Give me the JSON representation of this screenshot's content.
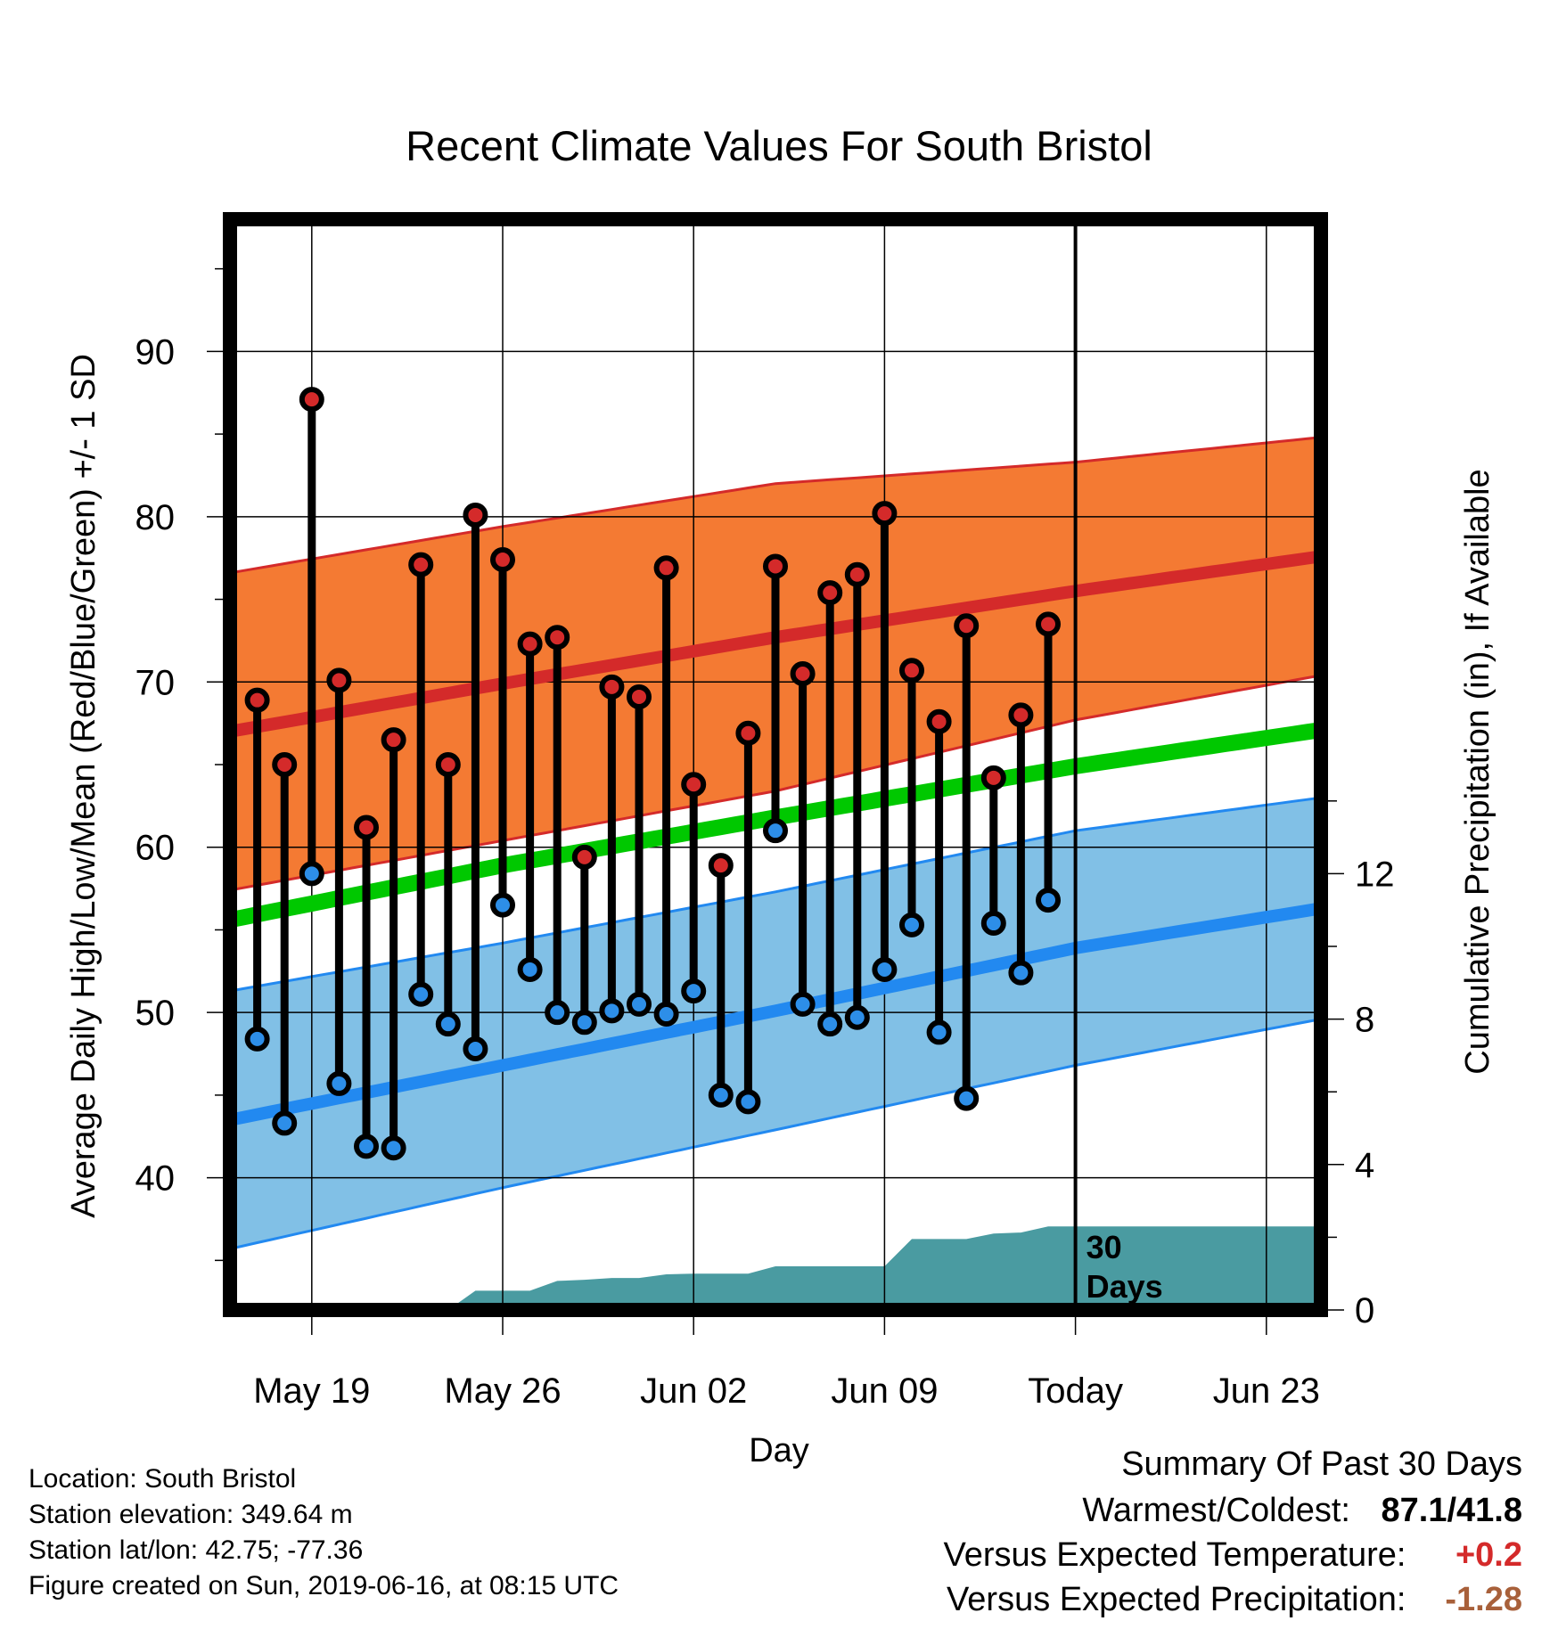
{
  "chart_data": {
    "type": "line",
    "title": "Recent Climate Values For South Bristol",
    "xlabel": "Day",
    "ylabel": "Average Daily High/Low/Mean (Red/Blue/Green) +/- 1 SD",
    "y2label": "Cumulative Precipitation (in), If Available",
    "ylim": [
      32,
      98
    ],
    "y2lim": [
      0,
      30
    ],
    "y_ticks": [
      40,
      50,
      60,
      70,
      80,
      90
    ],
    "y_tick_labels": [
      "40",
      "50",
      "60",
      "70",
      "80",
      "90"
    ],
    "y2_ticks": [
      0,
      4,
      8,
      12
    ],
    "y2_tick_labels": [
      "0",
      "4",
      "8",
      "12"
    ],
    "x_ticks": [
      "2019-05-19",
      "2019-05-26",
      "2019-06-02",
      "2019-06-09",
      "2019-06-16",
      "2019-06-23"
    ],
    "x_tick_labels": [
      "May 19",
      "May 26",
      "Jun 02",
      "Jun 09",
      "Today",
      "Jun 23"
    ],
    "xlim": [
      "2019-05-16",
      "2019-06-25"
    ],
    "grid": true,
    "today": "2019-06-16",
    "today_annotation": [
      "30",
      "Days"
    ],
    "daily_high": [
      {
        "date": "2019-05-17",
        "value": 68.9
      },
      {
        "date": "2019-05-18",
        "value": 65.0
      },
      {
        "date": "2019-05-19",
        "value": 87.1
      },
      {
        "date": "2019-05-20",
        "value": 70.1
      },
      {
        "date": "2019-05-21",
        "value": 61.2
      },
      {
        "date": "2019-05-22",
        "value": 66.5
      },
      {
        "date": "2019-05-23",
        "value": 77.1
      },
      {
        "date": "2019-05-24",
        "value": 65.0
      },
      {
        "date": "2019-05-25",
        "value": 80.1
      },
      {
        "date": "2019-05-26",
        "value": 77.4
      },
      {
        "date": "2019-05-27",
        "value": 72.3
      },
      {
        "date": "2019-05-28",
        "value": 72.7
      },
      {
        "date": "2019-05-29",
        "value": 59.4
      },
      {
        "date": "2019-05-30",
        "value": 69.7
      },
      {
        "date": "2019-05-31",
        "value": 69.1
      },
      {
        "date": "2019-06-01",
        "value": 76.9
      },
      {
        "date": "2019-06-02",
        "value": 63.8
      },
      {
        "date": "2019-06-03",
        "value": 58.9
      },
      {
        "date": "2019-06-04",
        "value": 66.9
      },
      {
        "date": "2019-06-05",
        "value": 77.0
      },
      {
        "date": "2019-06-06",
        "value": 70.5
      },
      {
        "date": "2019-06-07",
        "value": 75.4
      },
      {
        "date": "2019-06-08",
        "value": 76.5
      },
      {
        "date": "2019-06-09",
        "value": 80.2
      },
      {
        "date": "2019-06-10",
        "value": 70.7
      },
      {
        "date": "2019-06-11",
        "value": 67.6
      },
      {
        "date": "2019-06-12",
        "value": 73.4
      },
      {
        "date": "2019-06-13",
        "value": 64.2
      },
      {
        "date": "2019-06-14",
        "value": 68.0
      },
      {
        "date": "2019-06-15",
        "value": 73.5
      }
    ],
    "daily_low": [
      {
        "date": "2019-05-17",
        "value": 48.4
      },
      {
        "date": "2019-05-18",
        "value": 43.3
      },
      {
        "date": "2019-05-19",
        "value": 58.4
      },
      {
        "date": "2019-05-20",
        "value": 45.7
      },
      {
        "date": "2019-05-21",
        "value": 41.9
      },
      {
        "date": "2019-05-22",
        "value": 41.8
      },
      {
        "date": "2019-05-23",
        "value": 51.1
      },
      {
        "date": "2019-05-24",
        "value": 49.3
      },
      {
        "date": "2019-05-25",
        "value": 47.8
      },
      {
        "date": "2019-05-26",
        "value": 56.5
      },
      {
        "date": "2019-05-27",
        "value": 52.6
      },
      {
        "date": "2019-05-28",
        "value": 50.0
      },
      {
        "date": "2019-05-29",
        "value": 49.4
      },
      {
        "date": "2019-05-30",
        "value": 50.1
      },
      {
        "date": "2019-05-31",
        "value": 50.5
      },
      {
        "date": "2019-06-01",
        "value": 49.9
      },
      {
        "date": "2019-06-02",
        "value": 51.3
      },
      {
        "date": "2019-06-03",
        "value": 45.0
      },
      {
        "date": "2019-06-04",
        "value": 44.6
      },
      {
        "date": "2019-06-05",
        "value": 61.0
      },
      {
        "date": "2019-06-06",
        "value": 50.5
      },
      {
        "date": "2019-06-07",
        "value": 49.3
      },
      {
        "date": "2019-06-08",
        "value": 49.7
      },
      {
        "date": "2019-06-09",
        "value": 52.6
      },
      {
        "date": "2019-06-10",
        "value": 55.3
      },
      {
        "date": "2019-06-11",
        "value": 48.8
      },
      {
        "date": "2019-06-12",
        "value": 44.8
      },
      {
        "date": "2019-06-13",
        "value": 55.4
      },
      {
        "date": "2019-06-14",
        "value": 52.4
      },
      {
        "date": "2019-06-15",
        "value": 56.8
      }
    ],
    "normals": [
      {
        "date": "2019-05-16",
        "high": 67.0,
        "high_sd": 9.6,
        "low": 43.5,
        "low_sd": 7.8,
        "mean": 55.6
      },
      {
        "date": "2019-05-26",
        "high": 69.9,
        "high_sd": 9.5,
        "low": 46.8,
        "low_sd": 7.4,
        "mean": 58.9
      },
      {
        "date": "2019-06-05",
        "high": 72.7,
        "high_sd": 9.3,
        "low": 50.1,
        "low_sd": 7.2,
        "mean": 61.8
      },
      {
        "date": "2019-06-16",
        "high": 75.5,
        "high_sd": 7.8,
        "low": 53.9,
        "low_sd": 7.1,
        "mean": 64.9
      },
      {
        "date": "2019-06-25",
        "high": 77.6,
        "high_sd": 7.2,
        "low": 56.3,
        "low_sd": 6.7,
        "mean": 67.1
      }
    ],
    "cumulative_precipitation": [
      {
        "date": "2019-05-16",
        "value": 0.0
      },
      {
        "date": "2019-05-24",
        "value": 0.0
      },
      {
        "date": "2019-05-25",
        "value": 0.53
      },
      {
        "date": "2019-05-26",
        "value": 0.53
      },
      {
        "date": "2019-05-27",
        "value": 0.53
      },
      {
        "date": "2019-05-28",
        "value": 0.8
      },
      {
        "date": "2019-05-29",
        "value": 0.83
      },
      {
        "date": "2019-05-30",
        "value": 0.88
      },
      {
        "date": "2019-05-31",
        "value": 0.88
      },
      {
        "date": "2019-06-01",
        "value": 0.98
      },
      {
        "date": "2019-06-02",
        "value": 1.0
      },
      {
        "date": "2019-06-03",
        "value": 1.0
      },
      {
        "date": "2019-06-04",
        "value": 1.0
      },
      {
        "date": "2019-06-05",
        "value": 1.2
      },
      {
        "date": "2019-06-06",
        "value": 1.2
      },
      {
        "date": "2019-06-07",
        "value": 1.2
      },
      {
        "date": "2019-06-08",
        "value": 1.2
      },
      {
        "date": "2019-06-09",
        "value": 1.2
      },
      {
        "date": "2019-06-10",
        "value": 1.95
      },
      {
        "date": "2019-06-11",
        "value": 1.95
      },
      {
        "date": "2019-06-12",
        "value": 1.95
      },
      {
        "date": "2019-06-13",
        "value": 2.1
      },
      {
        "date": "2019-06-14",
        "value": 2.13
      },
      {
        "date": "2019-06-15",
        "value": 2.3
      },
      {
        "date": "2019-06-16",
        "value": 2.3
      },
      {
        "date": "2019-06-25",
        "value": 2.3
      }
    ],
    "colors": {
      "high_band": "#f47a33",
      "high_line": "#d42a2a",
      "low_band": "#81c0e6",
      "low_line": "#2289f0",
      "mean_line": "#00c800",
      "precip": "#4a9ba1",
      "high_marker": "#d42a2a",
      "low_marker": "#2d8ee8"
    }
  },
  "info": {
    "location": "Location: South Bristol",
    "elevation": "Station elevation: 349.64 m",
    "latlon": "Station lat/lon: 42.75; -77.36",
    "created": "Figure created on Sun, 2019-06-16, at 08:15 UTC"
  },
  "summary": {
    "heading": "Summary Of Past 30 Days",
    "warmest_label": "Warmest/Coldest:",
    "warmest_value": "87.1/41.8",
    "temp_label": "Versus Expected Temperature:",
    "temp_value": "+0.2",
    "temp_color": "#d42a2a",
    "precip_label": "Versus Expected Precipitation:",
    "precip_value": "-1.28",
    "precip_color": "#a8603a"
  }
}
